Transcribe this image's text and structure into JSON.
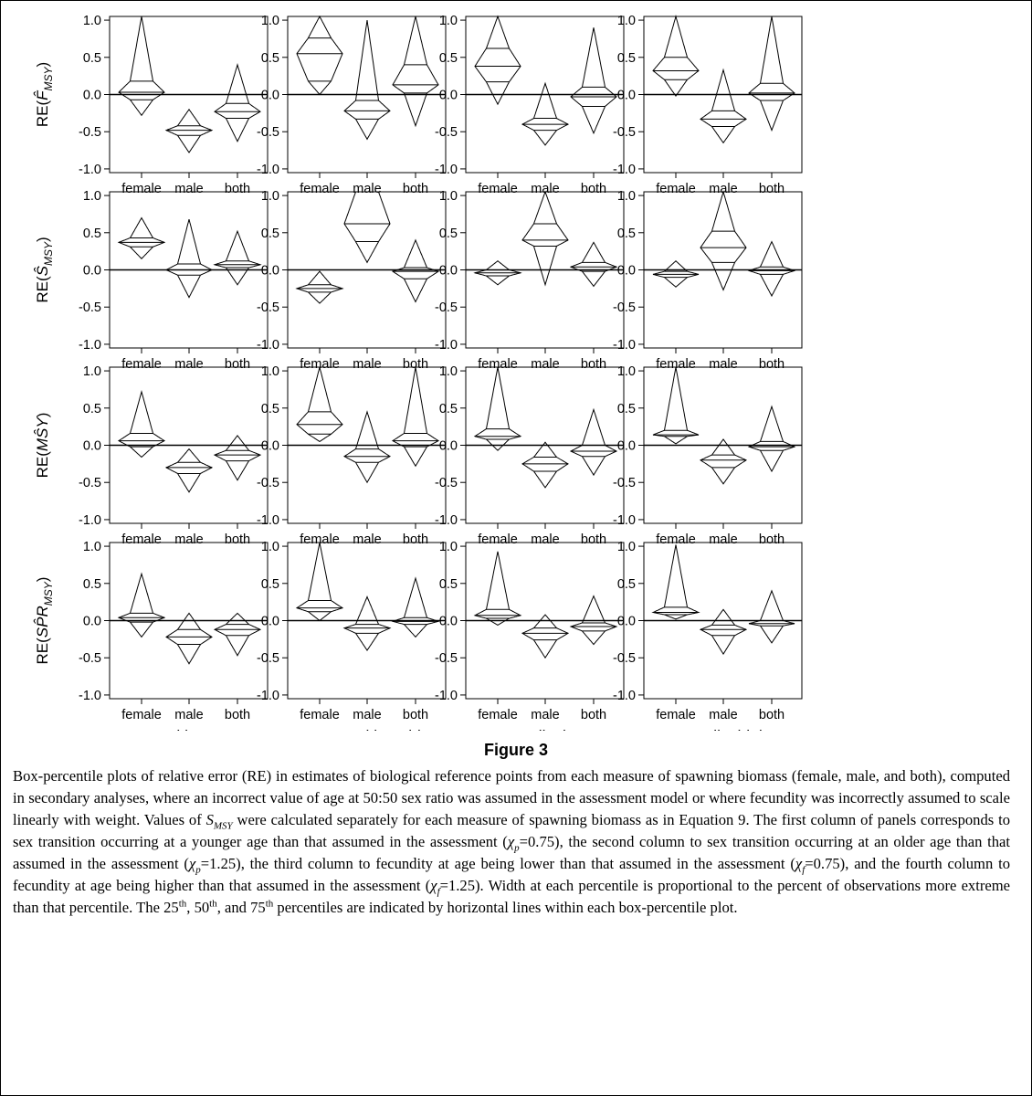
{
  "chart_data": {
    "type": "box-percentile",
    "categories": [
      "female",
      "male",
      "both"
    ],
    "columns": [
      "Sex transition younger",
      "Sex transition older",
      "Fecundity lower",
      "Fecundity higher"
    ],
    "row_labels": [
      {
        "base": "RE(",
        "main": "F̂",
        "sub": "MSY",
        "close": ")"
      },
      {
        "base": "RE(",
        "main": "Ŝ",
        "sub": "MSY",
        "close": ")"
      },
      {
        "base": "RE(",
        "main": "MŜY",
        "sub": "",
        "close": ")"
      },
      {
        "base": "RE(",
        "main": "SP̂R",
        "sub": "MSY",
        "close": ")"
      }
    ],
    "ylim": [
      -1.05,
      1.05
    ],
    "yticks": [
      "1.0",
      "0.5",
      "0.0",
      "-0.5",
      "-1.0"
    ],
    "ytick_values": [
      1.0,
      0.5,
      0.0,
      -0.5,
      -1.0
    ],
    "reference_line": 0,
    "panels": [
      [
        {
          "female": [
            -0.28,
            -0.07,
            0.03,
            0.18,
            1.05
          ],
          "male": [
            -0.78,
            -0.55,
            -0.48,
            -0.42,
            -0.2
          ],
          "both": [
            -0.63,
            -0.32,
            -0.23,
            -0.12,
            0.4
          ]
        },
        {
          "female": [
            0.0,
            0.18,
            0.55,
            0.76,
            1.05
          ],
          "male": [
            -0.6,
            -0.33,
            -0.22,
            -0.08,
            1.0
          ],
          "both": [
            -0.42,
            0.02,
            0.13,
            0.4,
            1.05
          ]
        },
        {
          "female": [
            -0.13,
            0.17,
            0.38,
            0.62,
            1.05
          ],
          "male": [
            -0.68,
            -0.48,
            -0.4,
            -0.32,
            0.15
          ],
          "both": [
            -0.52,
            -0.16,
            -0.03,
            0.1,
            0.9
          ]
        },
        {
          "female": [
            -0.02,
            0.2,
            0.32,
            0.5,
            1.05
          ],
          "male": [
            -0.65,
            -0.43,
            -0.33,
            -0.22,
            0.33
          ],
          "both": [
            -0.48,
            -0.08,
            0.02,
            0.15,
            1.05
          ]
        }
      ],
      [
        {
          "female": [
            0.15,
            0.31,
            0.37,
            0.43,
            0.7
          ],
          "male": [
            -0.37,
            -0.07,
            0.0,
            0.08,
            0.68
          ],
          "both": [
            -0.2,
            0.03,
            0.07,
            0.12,
            0.52
          ]
        },
        {
          "female": [
            -0.45,
            -0.3,
            -0.25,
            -0.2,
            -0.02
          ],
          "male": [
            0.1,
            0.38,
            0.62,
            1.05,
            1.05
          ],
          "both": [
            -0.43,
            -0.12,
            -0.02,
            0.03,
            0.4
          ]
        },
        {
          "female": [
            -0.2,
            -0.08,
            -0.04,
            0.0,
            0.12
          ],
          "male": [
            -0.2,
            0.32,
            0.4,
            0.62,
            1.05
          ],
          "both": [
            -0.22,
            -0.02,
            0.04,
            0.1,
            0.37
          ]
        },
        {
          "female": [
            -0.23,
            -0.1,
            -0.06,
            -0.02,
            0.12
          ],
          "male": [
            -0.27,
            0.1,
            0.3,
            0.52,
            1.05
          ],
          "both": [
            -0.35,
            -0.06,
            -0.01,
            0.04,
            0.38
          ]
        }
      ],
      [
        {
          "female": [
            -0.16,
            -0.02,
            0.06,
            0.16,
            0.72
          ],
          "male": [
            -0.63,
            -0.38,
            -0.3,
            -0.23,
            -0.05
          ],
          "both": [
            -0.47,
            -0.21,
            -0.13,
            -0.07,
            0.13
          ]
        },
        {
          "female": [
            0.05,
            0.15,
            0.28,
            0.45,
            1.05
          ],
          "male": [
            -0.5,
            -0.23,
            -0.15,
            -0.05,
            0.45
          ],
          "both": [
            -0.28,
            -0.02,
            0.06,
            0.16,
            1.05
          ]
        },
        {
          "female": [
            -0.07,
            0.08,
            0.12,
            0.22,
            1.05
          ],
          "male": [
            -0.57,
            -0.35,
            -0.25,
            -0.16,
            0.04
          ],
          "both": [
            -0.4,
            -0.15,
            -0.08,
            0.0,
            0.48
          ]
        },
        {
          "female": [
            0.02,
            0.12,
            0.14,
            0.2,
            1.05
          ],
          "male": [
            -0.52,
            -0.3,
            -0.2,
            -0.13,
            0.08
          ],
          "both": [
            -0.35,
            -0.07,
            -0.02,
            0.05,
            0.52
          ]
        }
      ],
      [
        {
          "female": [
            -0.22,
            -0.02,
            0.04,
            0.1,
            0.63
          ],
          "male": [
            -0.58,
            -0.32,
            -0.22,
            -0.12,
            0.1
          ],
          "both": [
            -0.47,
            -0.2,
            -0.12,
            -0.05,
            0.1
          ]
        },
        {
          "female": [
            0.0,
            0.12,
            0.17,
            0.27,
            1.05
          ],
          "male": [
            -0.4,
            -0.17,
            -0.1,
            -0.05,
            0.32
          ],
          "both": [
            -0.22,
            -0.05,
            -0.01,
            0.04,
            0.57
          ]
        },
        {
          "female": [
            -0.06,
            0.03,
            0.07,
            0.15,
            0.93
          ],
          "male": [
            -0.5,
            -0.26,
            -0.17,
            -0.1,
            0.08
          ],
          "both": [
            -0.32,
            -0.14,
            -0.08,
            -0.03,
            0.33
          ]
        },
        {
          "female": [
            0.02,
            0.08,
            0.11,
            0.18,
            1.02
          ],
          "male": [
            -0.45,
            -0.2,
            -0.12,
            -0.06,
            0.15
          ],
          "both": [
            -0.3,
            -0.07,
            -0.04,
            0.0,
            0.4
          ]
        }
      ]
    ]
  },
  "figure": {
    "title": "Figure 3",
    "caption_parts": [
      {
        "t": "Box-percentile plots of relative error (RE) in estimates of biological reference points from each measure of spawning biomass (female, male, and both), computed in secondary analyses, where an incorrect value of age at 50:50 sex ratio was assumed in the assessment model or where fecundity was incorrectly assumed to scale linearly with weight. Values of "
      },
      {
        "t": "S",
        "i": true
      },
      {
        "t": "MSY",
        "sub": true,
        "i": true
      },
      {
        "t": " were calculated separately for each measure of spawning biomass as in Equation 9. The first column of panels corresponds to sex transition occurring at a younger age than that assumed in the assessment ("
      },
      {
        "t": "χ",
        "i": true
      },
      {
        "t": "p",
        "sub": true,
        "i": true
      },
      {
        "t": "=0.75), the second column to sex transition occurring at an older age than that assumed in the assessment ("
      },
      {
        "t": "χ",
        "i": true
      },
      {
        "t": "p",
        "sub": true,
        "i": true
      },
      {
        "t": "=1.25), the third column to fecundity at age being lower than that assumed in the assessment ("
      },
      {
        "t": "χ",
        "i": true
      },
      {
        "t": "f",
        "sub": true,
        "i": true
      },
      {
        "t": "=0.75), and the fourth column to fecundity at age being higher than that assumed in the assessment ("
      },
      {
        "t": "χ",
        "i": true
      },
      {
        "t": "f",
        "sub": true,
        "i": true
      },
      {
        "t": "=1.25). Width at each percentile is proportional to the percent of observations more extreme than that percentile. The 25"
      },
      {
        "t": "th",
        "sup": true
      },
      {
        "t": ", 50"
      },
      {
        "t": "th",
        "sup": true
      },
      {
        "t": ", and 75"
      },
      {
        "t": "th",
        "sup": true
      },
      {
        "t": " percentiles are indicated by horizontal lines within each box-percentile plot."
      }
    ]
  }
}
